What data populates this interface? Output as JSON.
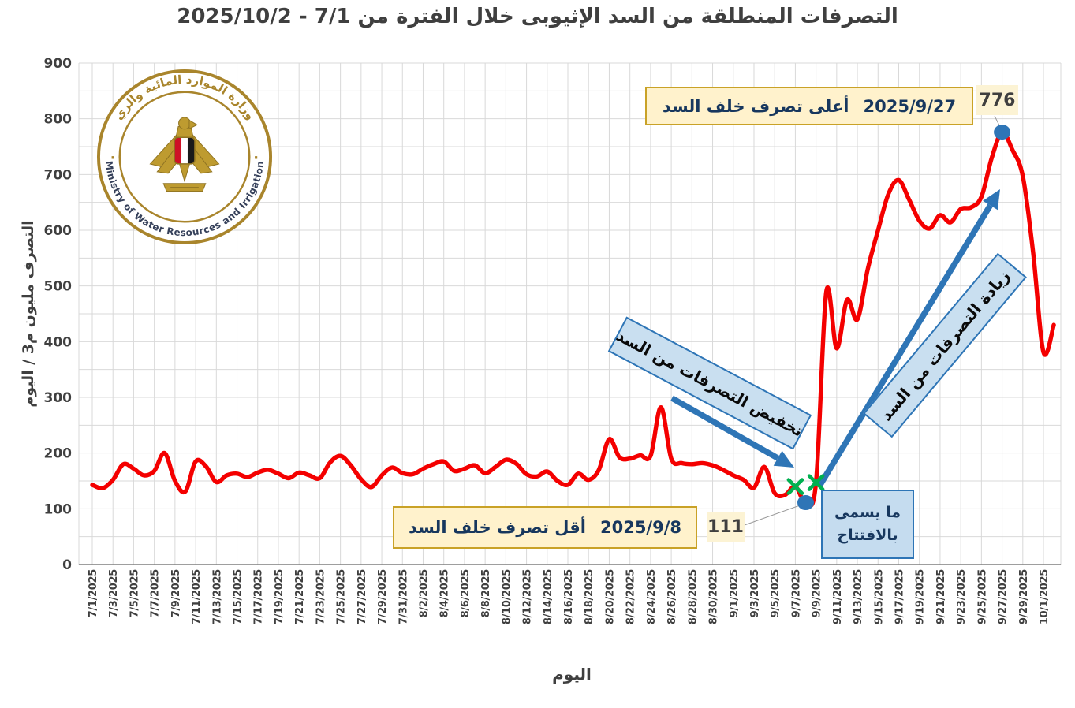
{
  "title": "التصرفات المنطلقة من السد الإثيوبى خلال الفترة من 7/1 - 2025/10/2",
  "logo": {
    "arabic_text": "وزارة الموارد المائية والري",
    "english_text": "Ministry of Water Resources and Irrigation",
    "separator": "·"
  },
  "y_axis": {
    "title": "التصرف مليون م3 / اليوم",
    "ticks": [
      0,
      100,
      200,
      300,
      400,
      500,
      600,
      700,
      800,
      900
    ]
  },
  "x_axis": {
    "title": "اليوم",
    "tick_labels": [
      "7/1/2025",
      "7/3/2025",
      "7/5/2025",
      "7/7/2025",
      "7/9/2025",
      "7/11/2025",
      "7/13/2025",
      "7/15/2025",
      "7/17/2025",
      "7/19/2025",
      "7/21/2025",
      "7/23/2025",
      "7/25/2025",
      "7/27/2025",
      "7/29/2025",
      "7/31/2025",
      "8/2/2025",
      "8/4/2025",
      "8/6/2025",
      "8/8/2025",
      "8/10/2025",
      "8/12/2025",
      "8/14/2025",
      "8/16/2025",
      "8/18/2025",
      "8/20/2025",
      "8/22/2025",
      "8/24/2025",
      "8/26/2025",
      "8/28/2025",
      "8/30/2025",
      "9/1/2025",
      "9/3/2025",
      "9/5/2025",
      "9/7/2025",
      "9/9/2025",
      "9/11/2025",
      "9/13/2025",
      "9/15/2025",
      "9/17/2025",
      "9/19/2025",
      "9/21/2025",
      "9/23/2025",
      "9/25/2025",
      "9/27/2025",
      "9/29/2025",
      "10/1/2025"
    ]
  },
  "annotations": {
    "max": {
      "date": "2025/9/27",
      "label": "أعلى تصرف خلف السد",
      "value": "776"
    },
    "min": {
      "date": "2025/9/8",
      "label": "أقل تصرف خلف السد",
      "value": "111"
    },
    "decrease_box": "تخفيض التصرفات من السد",
    "increase_box": "زيادة التصرفات من السد",
    "opening_line1": "ما يسمى",
    "opening_line2": "بالافتتاح"
  },
  "colors": {
    "line": "#F40000",
    "grid": "#D9D9D9",
    "axis": "#7F7F7F",
    "text": "#3F3F3F",
    "blue_accent": "#2E75B6",
    "green_marker": "#00B050",
    "yellow_fill": "#FFF2CC",
    "yellow_border": "#C9A227",
    "blue_fill": "#C9DFF0",
    "navy_text": "#17375E",
    "gold": "#A9852C"
  },
  "chart_data": {
    "type": "line",
    "title": "التصرفات المنطلقة من السد الإثيوبى خلال الفترة من 7/1 - 2025/10/2",
    "xlabel": "اليوم",
    "ylabel": "التصرف مليون م3 / اليوم",
    "ylim": [
      0,
      900
    ],
    "y_gridline_step": 50,
    "grid": true,
    "legend": false,
    "dates": [
      "7/1/2025",
      "7/2/2025",
      "7/3/2025",
      "7/4/2025",
      "7/5/2025",
      "7/6/2025",
      "7/7/2025",
      "7/8/2025",
      "7/9/2025",
      "7/10/2025",
      "7/11/2025",
      "7/12/2025",
      "7/13/2025",
      "7/14/2025",
      "7/15/2025",
      "7/16/2025",
      "7/17/2025",
      "7/18/2025",
      "7/19/2025",
      "7/20/2025",
      "7/21/2025",
      "7/22/2025",
      "7/23/2025",
      "7/24/2025",
      "7/25/2025",
      "7/26/2025",
      "7/27/2025",
      "7/28/2025",
      "7/29/2025",
      "7/30/2025",
      "7/31/2025",
      "8/1/2025",
      "8/2/2025",
      "8/3/2025",
      "8/4/2025",
      "8/5/2025",
      "8/6/2025",
      "8/7/2025",
      "8/8/2025",
      "8/9/2025",
      "8/10/2025",
      "8/11/2025",
      "8/12/2025",
      "8/13/2025",
      "8/14/2025",
      "8/15/2025",
      "8/16/2025",
      "8/17/2025",
      "8/18/2025",
      "8/19/2025",
      "8/20/2025",
      "8/21/2025",
      "8/22/2025",
      "8/23/2025",
      "8/24/2025",
      "8/25/2025",
      "8/26/2025",
      "8/27/2025",
      "8/28/2025",
      "8/29/2025",
      "8/30/2025",
      "8/31/2025",
      "9/1/2025",
      "9/2/2025",
      "9/3/2025",
      "9/4/2025",
      "9/5/2025",
      "9/6/2025",
      "9/7/2025",
      "9/8/2025",
      "9/9/2025",
      "9/10/2025",
      "9/11/2025",
      "9/12/2025",
      "9/13/2025",
      "9/14/2025",
      "9/15/2025",
      "9/16/2025",
      "9/17/2025",
      "9/18/2025",
      "9/19/2025",
      "9/20/2025",
      "9/21/2025",
      "9/22/2025",
      "9/23/2025",
      "9/24/2025",
      "9/25/2025",
      "9/26/2025",
      "9/27/2025",
      "9/28/2025",
      "9/29/2025",
      "9/30/2025",
      "10/1/2025",
      "10/2/2025"
    ],
    "values": [
      143,
      137,
      152,
      180,
      172,
      160,
      168,
      200,
      150,
      131,
      185,
      176,
      148,
      160,
      163,
      157,
      165,
      170,
      163,
      155,
      165,
      160,
      155,
      183,
      195,
      178,
      153,
      139,
      160,
      174,
      164,
      162,
      172,
      180,
      185,
      168,
      172,
      178,
      164,
      175,
      188,
      181,
      162,
      158,
      167,
      150,
      143,
      163,
      152,
      170,
      225,
      192,
      190,
      196,
      195,
      282,
      190,
      182,
      180,
      182,
      178,
      170,
      160,
      152,
      138,
      175,
      128,
      125,
      140,
      111,
      147,
      490,
      388,
      475,
      440,
      530,
      600,
      665,
      690,
      655,
      617,
      603,
      627,
      614,
      638,
      641,
      660,
      730,
      776,
      744,
      697,
      560,
      381,
      430
    ],
    "markers": {
      "blue_dots": [
        {
          "date": "9/8/2025",
          "value": 111
        },
        {
          "date": "9/27/2025",
          "value": 776
        }
      ],
      "green_x": [
        {
          "date": "9/7/2025",
          "value": 140
        },
        {
          "date": "9/9/2025",
          "value": 147
        }
      ]
    }
  }
}
